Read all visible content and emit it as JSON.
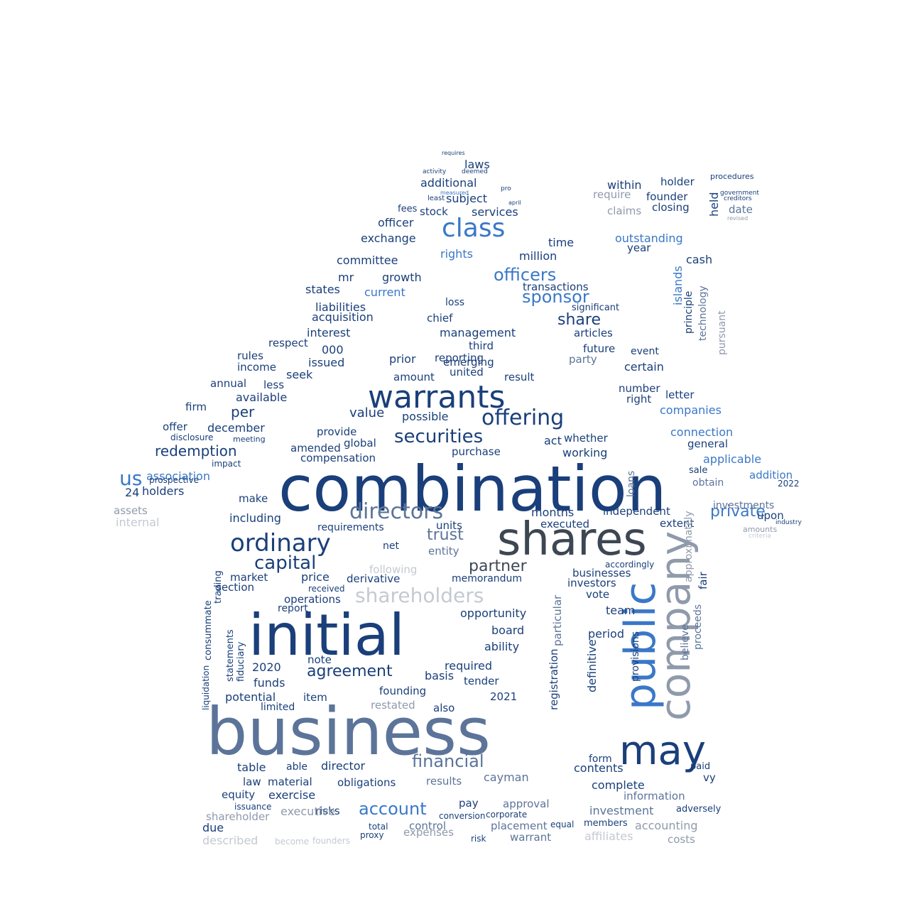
{
  "palette": {
    "navy": "#1a3f7a",
    "blue": "#3a78c8",
    "slate": "#5c7499",
    "gray": "#8f9aab",
    "light": "#c4c9d2",
    "dark": "#3d4753"
  },
  "words": [
    {
      "text": "combination",
      "color": "navy"
    },
    {
      "text": "business",
      "color": "slate"
    },
    {
      "text": "initial",
      "color": "navy"
    },
    {
      "text": "shares",
      "color": "dark"
    },
    {
      "text": "public",
      "color": "blue"
    },
    {
      "text": "company",
      "color": "gray"
    },
    {
      "text": "may",
      "color": "navy"
    },
    {
      "text": "warrants",
      "color": "navy"
    },
    {
      "text": "class",
      "color": "blue"
    },
    {
      "text": "directors",
      "color": "slate"
    },
    {
      "text": "ordinary",
      "color": "navy"
    },
    {
      "text": "offering",
      "color": "navy"
    },
    {
      "text": "securities",
      "color": "navy"
    },
    {
      "text": "shareholders",
      "color": "light"
    },
    {
      "text": "us",
      "color": "blue"
    },
    {
      "text": "sponsor",
      "color": "blue"
    },
    {
      "text": "capital",
      "color": "navy"
    },
    {
      "text": "financial",
      "color": "slate"
    },
    {
      "text": "account",
      "color": "blue"
    },
    {
      "text": "officers",
      "color": "blue"
    },
    {
      "text": "agreement",
      "color": "navy"
    },
    {
      "text": "partner",
      "color": "dark"
    },
    {
      "text": "private",
      "color": "blue"
    },
    {
      "text": "share",
      "color": "navy"
    },
    {
      "text": "trust",
      "color": "slate"
    },
    {
      "text": "redemption",
      "color": "navy"
    },
    {
      "text": "additional",
      "color": "navy"
    },
    {
      "text": "subject",
      "color": "navy"
    },
    {
      "text": "laws",
      "color": "navy"
    },
    {
      "text": "exchange",
      "color": "navy"
    },
    {
      "text": "officer",
      "color": "navy"
    },
    {
      "text": "services",
      "color": "navy"
    },
    {
      "text": "stock",
      "color": "navy"
    },
    {
      "text": "fees",
      "color": "navy"
    },
    {
      "text": "rights",
      "color": "blue"
    },
    {
      "text": "time",
      "color": "navy"
    },
    {
      "text": "million",
      "color": "navy"
    },
    {
      "text": "committee",
      "color": "navy"
    },
    {
      "text": "growth",
      "color": "navy"
    },
    {
      "text": "mr",
      "color": "navy"
    },
    {
      "text": "current",
      "color": "blue"
    },
    {
      "text": "states",
      "color": "navy"
    },
    {
      "text": "liabilities",
      "color": "navy"
    },
    {
      "text": "acquisition",
      "color": "navy"
    },
    {
      "text": "interest",
      "color": "navy"
    },
    {
      "text": "respect",
      "color": "navy"
    },
    {
      "text": "000",
      "color": "navy"
    },
    {
      "text": "issued",
      "color": "navy"
    },
    {
      "text": "income",
      "color": "navy"
    },
    {
      "text": "rules",
      "color": "navy"
    },
    {
      "text": "seek",
      "color": "navy"
    },
    {
      "text": "less",
      "color": "navy"
    },
    {
      "text": "annual",
      "color": "navy"
    },
    {
      "text": "available",
      "color": "navy"
    },
    {
      "text": "per",
      "color": "navy"
    },
    {
      "text": "firm",
      "color": "navy"
    },
    {
      "text": "december",
      "color": "navy"
    },
    {
      "text": "offer",
      "color": "navy"
    },
    {
      "text": "association",
      "color": "blue"
    },
    {
      "text": "holders",
      "color": "navy"
    },
    {
      "text": "prospective",
      "color": "navy"
    },
    {
      "text": "24",
      "color": "navy"
    },
    {
      "text": "assets",
      "color": "gray"
    },
    {
      "text": "internal",
      "color": "light"
    },
    {
      "text": "within",
      "color": "navy"
    },
    {
      "text": "holder",
      "color": "navy"
    },
    {
      "text": "founder",
      "color": "navy"
    },
    {
      "text": "closing",
      "color": "navy"
    },
    {
      "text": "require",
      "color": "gray"
    },
    {
      "text": "claims",
      "color": "gray"
    },
    {
      "text": "held",
      "color": "navy"
    },
    {
      "text": "date",
      "color": "slate"
    },
    {
      "text": "outstanding",
      "color": "blue"
    },
    {
      "text": "year",
      "color": "navy"
    },
    {
      "text": "cash",
      "color": "navy"
    },
    {
      "text": "islands",
      "color": "blue"
    },
    {
      "text": "principle",
      "color": "navy"
    },
    {
      "text": "technology",
      "color": "slate"
    },
    {
      "text": "pursuant",
      "color": "gray"
    },
    {
      "text": "transactions",
      "color": "navy"
    },
    {
      "text": "significant",
      "color": "navy"
    },
    {
      "text": "articles",
      "color": "navy"
    },
    {
      "text": "future",
      "color": "navy"
    },
    {
      "text": "event",
      "color": "navy"
    },
    {
      "text": "certain",
      "color": "navy"
    },
    {
      "text": "party",
      "color": "slate"
    },
    {
      "text": "number",
      "color": "navy"
    },
    {
      "text": "right",
      "color": "navy"
    },
    {
      "text": "letter",
      "color": "navy"
    },
    {
      "text": "companies",
      "color": "blue"
    },
    {
      "text": "connection",
      "color": "blue"
    },
    {
      "text": "general",
      "color": "navy"
    },
    {
      "text": "applicable",
      "color": "blue"
    },
    {
      "text": "addition",
      "color": "blue"
    },
    {
      "text": "investments",
      "color": "slate"
    },
    {
      "text": "upon",
      "color": "navy"
    },
    {
      "text": "management",
      "color": "navy"
    },
    {
      "text": "chief",
      "color": "navy"
    },
    {
      "text": "loss",
      "color": "navy"
    },
    {
      "text": "third",
      "color": "navy"
    },
    {
      "text": "reporting",
      "color": "navy"
    },
    {
      "text": "prior",
      "color": "navy"
    },
    {
      "text": "emerging",
      "color": "navy"
    },
    {
      "text": "united",
      "color": "navy"
    },
    {
      "text": "result",
      "color": "navy"
    },
    {
      "text": "amount",
      "color": "navy"
    },
    {
      "text": "value",
      "color": "navy"
    },
    {
      "text": "possible",
      "color": "navy"
    },
    {
      "text": "provide",
      "color": "navy"
    },
    {
      "text": "global",
      "color": "navy"
    },
    {
      "text": "amended",
      "color": "navy"
    },
    {
      "text": "compensation",
      "color": "navy"
    },
    {
      "text": "purchase",
      "color": "navy"
    },
    {
      "text": "working",
      "color": "navy"
    },
    {
      "text": "whether",
      "color": "navy"
    },
    {
      "text": "act",
      "color": "navy"
    },
    {
      "text": "months",
      "color": "navy"
    },
    {
      "text": "executed",
      "color": "navy"
    },
    {
      "text": "independent",
      "color": "navy"
    },
    {
      "text": "extent",
      "color": "navy"
    },
    {
      "text": "including",
      "color": "navy"
    },
    {
      "text": "make",
      "color": "navy"
    },
    {
      "text": "requirements",
      "color": "navy"
    },
    {
      "text": "units",
      "color": "navy"
    },
    {
      "text": "net",
      "color": "navy"
    },
    {
      "text": "entity",
      "color": "slate"
    },
    {
      "text": "following",
      "color": "light"
    },
    {
      "text": "memorandum",
      "color": "navy"
    },
    {
      "text": "businesses",
      "color": "navy"
    },
    {
      "text": "investors",
      "color": "navy"
    },
    {
      "text": "vote",
      "color": "navy"
    },
    {
      "text": "team",
      "color": "navy"
    },
    {
      "text": "period",
      "color": "navy"
    },
    {
      "text": "price",
      "color": "navy"
    },
    {
      "text": "market",
      "color": "navy"
    },
    {
      "text": "derivative",
      "color": "navy"
    },
    {
      "text": "section",
      "color": "navy"
    },
    {
      "text": "received",
      "color": "navy"
    },
    {
      "text": "operations",
      "color": "navy"
    },
    {
      "text": "report",
      "color": "navy"
    },
    {
      "text": "opportunity",
      "color": "navy"
    },
    {
      "text": "board",
      "color": "navy"
    },
    {
      "text": "ability",
      "color": "navy"
    },
    {
      "text": "note",
      "color": "navy"
    },
    {
      "text": "2020",
      "color": "navy"
    },
    {
      "text": "funds",
      "color": "navy"
    },
    {
      "text": "potential",
      "color": "navy"
    },
    {
      "text": "limited",
      "color": "navy"
    },
    {
      "text": "item",
      "color": "navy"
    },
    {
      "text": "founding",
      "color": "navy"
    },
    {
      "text": "restated",
      "color": "gray"
    },
    {
      "text": "also",
      "color": "navy"
    },
    {
      "text": "tender",
      "color": "navy"
    },
    {
      "text": "basis",
      "color": "navy"
    },
    {
      "text": "required",
      "color": "navy"
    },
    {
      "text": "2021",
      "color": "navy"
    },
    {
      "text": "table",
      "color": "navy"
    },
    {
      "text": "able",
      "color": "navy"
    },
    {
      "text": "director",
      "color": "navy"
    },
    {
      "text": "law",
      "color": "navy"
    },
    {
      "text": "material",
      "color": "navy"
    },
    {
      "text": "equity",
      "color": "navy"
    },
    {
      "text": "exercise",
      "color": "navy"
    },
    {
      "text": "obligations",
      "color": "navy"
    },
    {
      "text": "results",
      "color": "slate"
    },
    {
      "text": "cayman",
      "color": "slate"
    },
    {
      "text": "approval",
      "color": "slate"
    },
    {
      "text": "pay",
      "color": "navy"
    },
    {
      "text": "risks",
      "color": "navy"
    },
    {
      "text": "control",
      "color": "slate"
    },
    {
      "text": "placement",
      "color": "slate"
    },
    {
      "text": "warrant",
      "color": "slate"
    },
    {
      "text": "shareholder",
      "color": "gray"
    },
    {
      "text": "executive",
      "color": "gray"
    },
    {
      "text": "expenses",
      "color": "gray"
    },
    {
      "text": "due",
      "color": "navy"
    },
    {
      "text": "described",
      "color": "light"
    },
    {
      "text": "investment",
      "color": "slate"
    },
    {
      "text": "accounting",
      "color": "gray"
    },
    {
      "text": "affiliates",
      "color": "light"
    },
    {
      "text": "costs",
      "color": "gray"
    },
    {
      "text": "information",
      "color": "slate"
    },
    {
      "text": "complete",
      "color": "navy"
    },
    {
      "text": "contents",
      "color": "navy"
    },
    {
      "text": "form",
      "color": "navy"
    },
    {
      "text": "members",
      "color": "navy"
    },
    {
      "text": "paid",
      "color": "navy"
    },
    {
      "text": "adversely",
      "color": "navy"
    },
    {
      "text": "vy",
      "color": "navy"
    },
    {
      "text": "definitive",
      "color": "navy"
    },
    {
      "text": "registration",
      "color": "navy"
    },
    {
      "text": "particular",
      "color": "slate"
    },
    {
      "text": "provisions",
      "color": "navy"
    },
    {
      "text": "believe",
      "color": "slate"
    },
    {
      "text": "proceeds",
      "color": "slate"
    },
    {
      "text": "approximately",
      "color": "gray"
    },
    {
      "text": "fair",
      "color": "navy"
    },
    {
      "text": "consummate",
      "color": "navy"
    },
    {
      "text": "trading",
      "color": "navy"
    },
    {
      "text": "statements",
      "color": "navy"
    },
    {
      "text": "fiduciary",
      "color": "navy"
    },
    {
      "text": "liquidation",
      "color": "navy"
    },
    {
      "text": "loans",
      "color": "slate"
    },
    {
      "text": "accordingly",
      "color": "navy"
    },
    {
      "text": "issuance",
      "color": "navy"
    },
    {
      "text": "conversion",
      "color": "navy"
    },
    {
      "text": "corporate",
      "color": "navy"
    },
    {
      "text": "total",
      "color": "navy"
    },
    {
      "text": "proxy",
      "color": "navy"
    },
    {
      "text": "founders",
      "color": "light"
    },
    {
      "text": "become",
      "color": "light"
    },
    {
      "text": "risk",
      "color": "navy"
    },
    {
      "text": "equal",
      "color": "navy"
    },
    {
      "text": "sale",
      "color": "navy"
    },
    {
      "text": "obtain",
      "color": "slate"
    },
    {
      "text": "2022",
      "color": "navy"
    },
    {
      "text": "industry",
      "color": "navy"
    },
    {
      "text": "impact",
      "color": "navy"
    },
    {
      "text": "disclosure",
      "color": "navy"
    },
    {
      "text": "meeting",
      "color": "navy"
    },
    {
      "text": "amounts",
      "color": "gray"
    },
    {
      "text": "criteria",
      "color": "light"
    },
    {
      "text": "procedures",
      "color": "navy"
    },
    {
      "text": "government",
      "color": "navy"
    },
    {
      "text": "creditors",
      "color": "navy"
    },
    {
      "text": "revised",
      "color": "gray"
    },
    {
      "text": "requires",
      "color": "navy"
    },
    {
      "text": "activity",
      "color": "navy"
    },
    {
      "text": "deemed",
      "color": "navy"
    },
    {
      "text": "pro",
      "color": "navy"
    },
    {
      "text": "april",
      "color": "navy"
    },
    {
      "text": "least",
      "color": "navy"
    },
    {
      "text": "measured",
      "color": "blue"
    }
  ]
}
